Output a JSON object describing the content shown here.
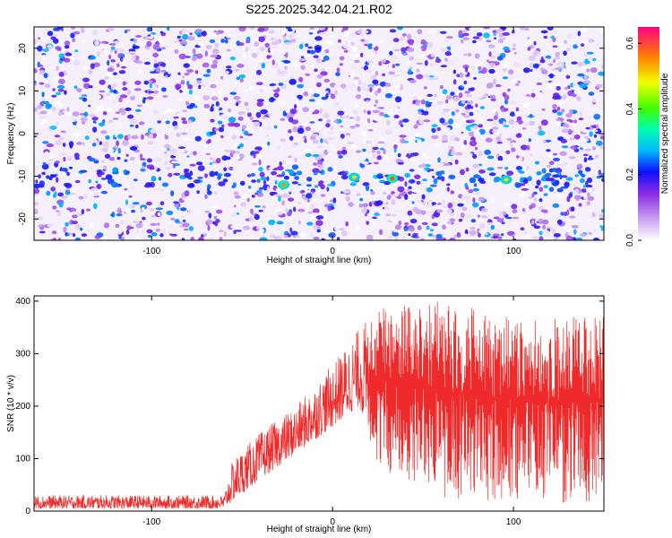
{
  "title": "S225.2025.342.04.21.R02",
  "chart_data": [
    {
      "type": "heatmap",
      "xlabel": "Height of straight line (km)",
      "ylabel": "Frequency (Hz)",
      "xlim": [
        -165,
        150
      ],
      "ylim": [
        -25,
        25
      ],
      "xticks": [
        "-100",
        "0",
        "100"
      ],
      "xtick_values": [
        -100,
        0,
        100
      ],
      "yticks": [
        "-20",
        "-10",
        "0",
        "10",
        "20"
      ],
      "ytick_values": [
        -20,
        -10,
        0,
        10,
        20
      ],
      "colorbar": {
        "label": "Normalized spectral amplitude",
        "range": [
          0,
          0.65
        ],
        "ticks": [
          "0.0",
          "0.2",
          "0.4",
          "0.6"
        ],
        "tick_values": [
          0,
          0.2,
          0.4,
          0.6
        ]
      },
      "features": {
        "band_frequency": -10.5,
        "quiet_strip_x": [
          8,
          15
        ],
        "hot_spots": [
          {
            "x": -27,
            "y": -12,
            "amp": 0.55
          },
          {
            "x": 12,
            "y": -10.2,
            "amp": 0.5
          },
          {
            "x": 33,
            "y": -10.5,
            "amp": 0.6
          },
          {
            "x": 96,
            "y": -10.8,
            "amp": 0.5
          }
        ]
      }
    },
    {
      "type": "line",
      "xlabel": "Height of straight line (km)",
      "ylabel": "SNR (10 * v/v)",
      "xlim": [
        -165,
        150
      ],
      "ylim": [
        0,
        410
      ],
      "xticks": [
        "-100",
        "0",
        "100"
      ],
      "xtick_values": [
        -100,
        0,
        100
      ],
      "yticks": [
        "0",
        "100",
        "200",
        "300",
        "400"
      ],
      "ytick_values": [
        0,
        100,
        200,
        300,
        400
      ],
      "color": "#ee2a2a",
      "envelope": [
        {
          "x": -165,
          "low": 5,
          "high": 30
        },
        {
          "x": -60,
          "low": 5,
          "high": 30
        },
        {
          "x": -55,
          "low": 20,
          "high": 100
        },
        {
          "x": -40,
          "low": 60,
          "high": 150
        },
        {
          "x": -20,
          "low": 110,
          "high": 200
        },
        {
          "x": 0,
          "low": 160,
          "high": 280
        },
        {
          "x": 15,
          "low": 200,
          "high": 350
        },
        {
          "x": 25,
          "low": 80,
          "high": 390
        },
        {
          "x": 60,
          "low": 20,
          "high": 400
        },
        {
          "x": 100,
          "low": 20,
          "high": 370
        },
        {
          "x": 150,
          "low": 10,
          "high": 370
        }
      ]
    }
  ]
}
